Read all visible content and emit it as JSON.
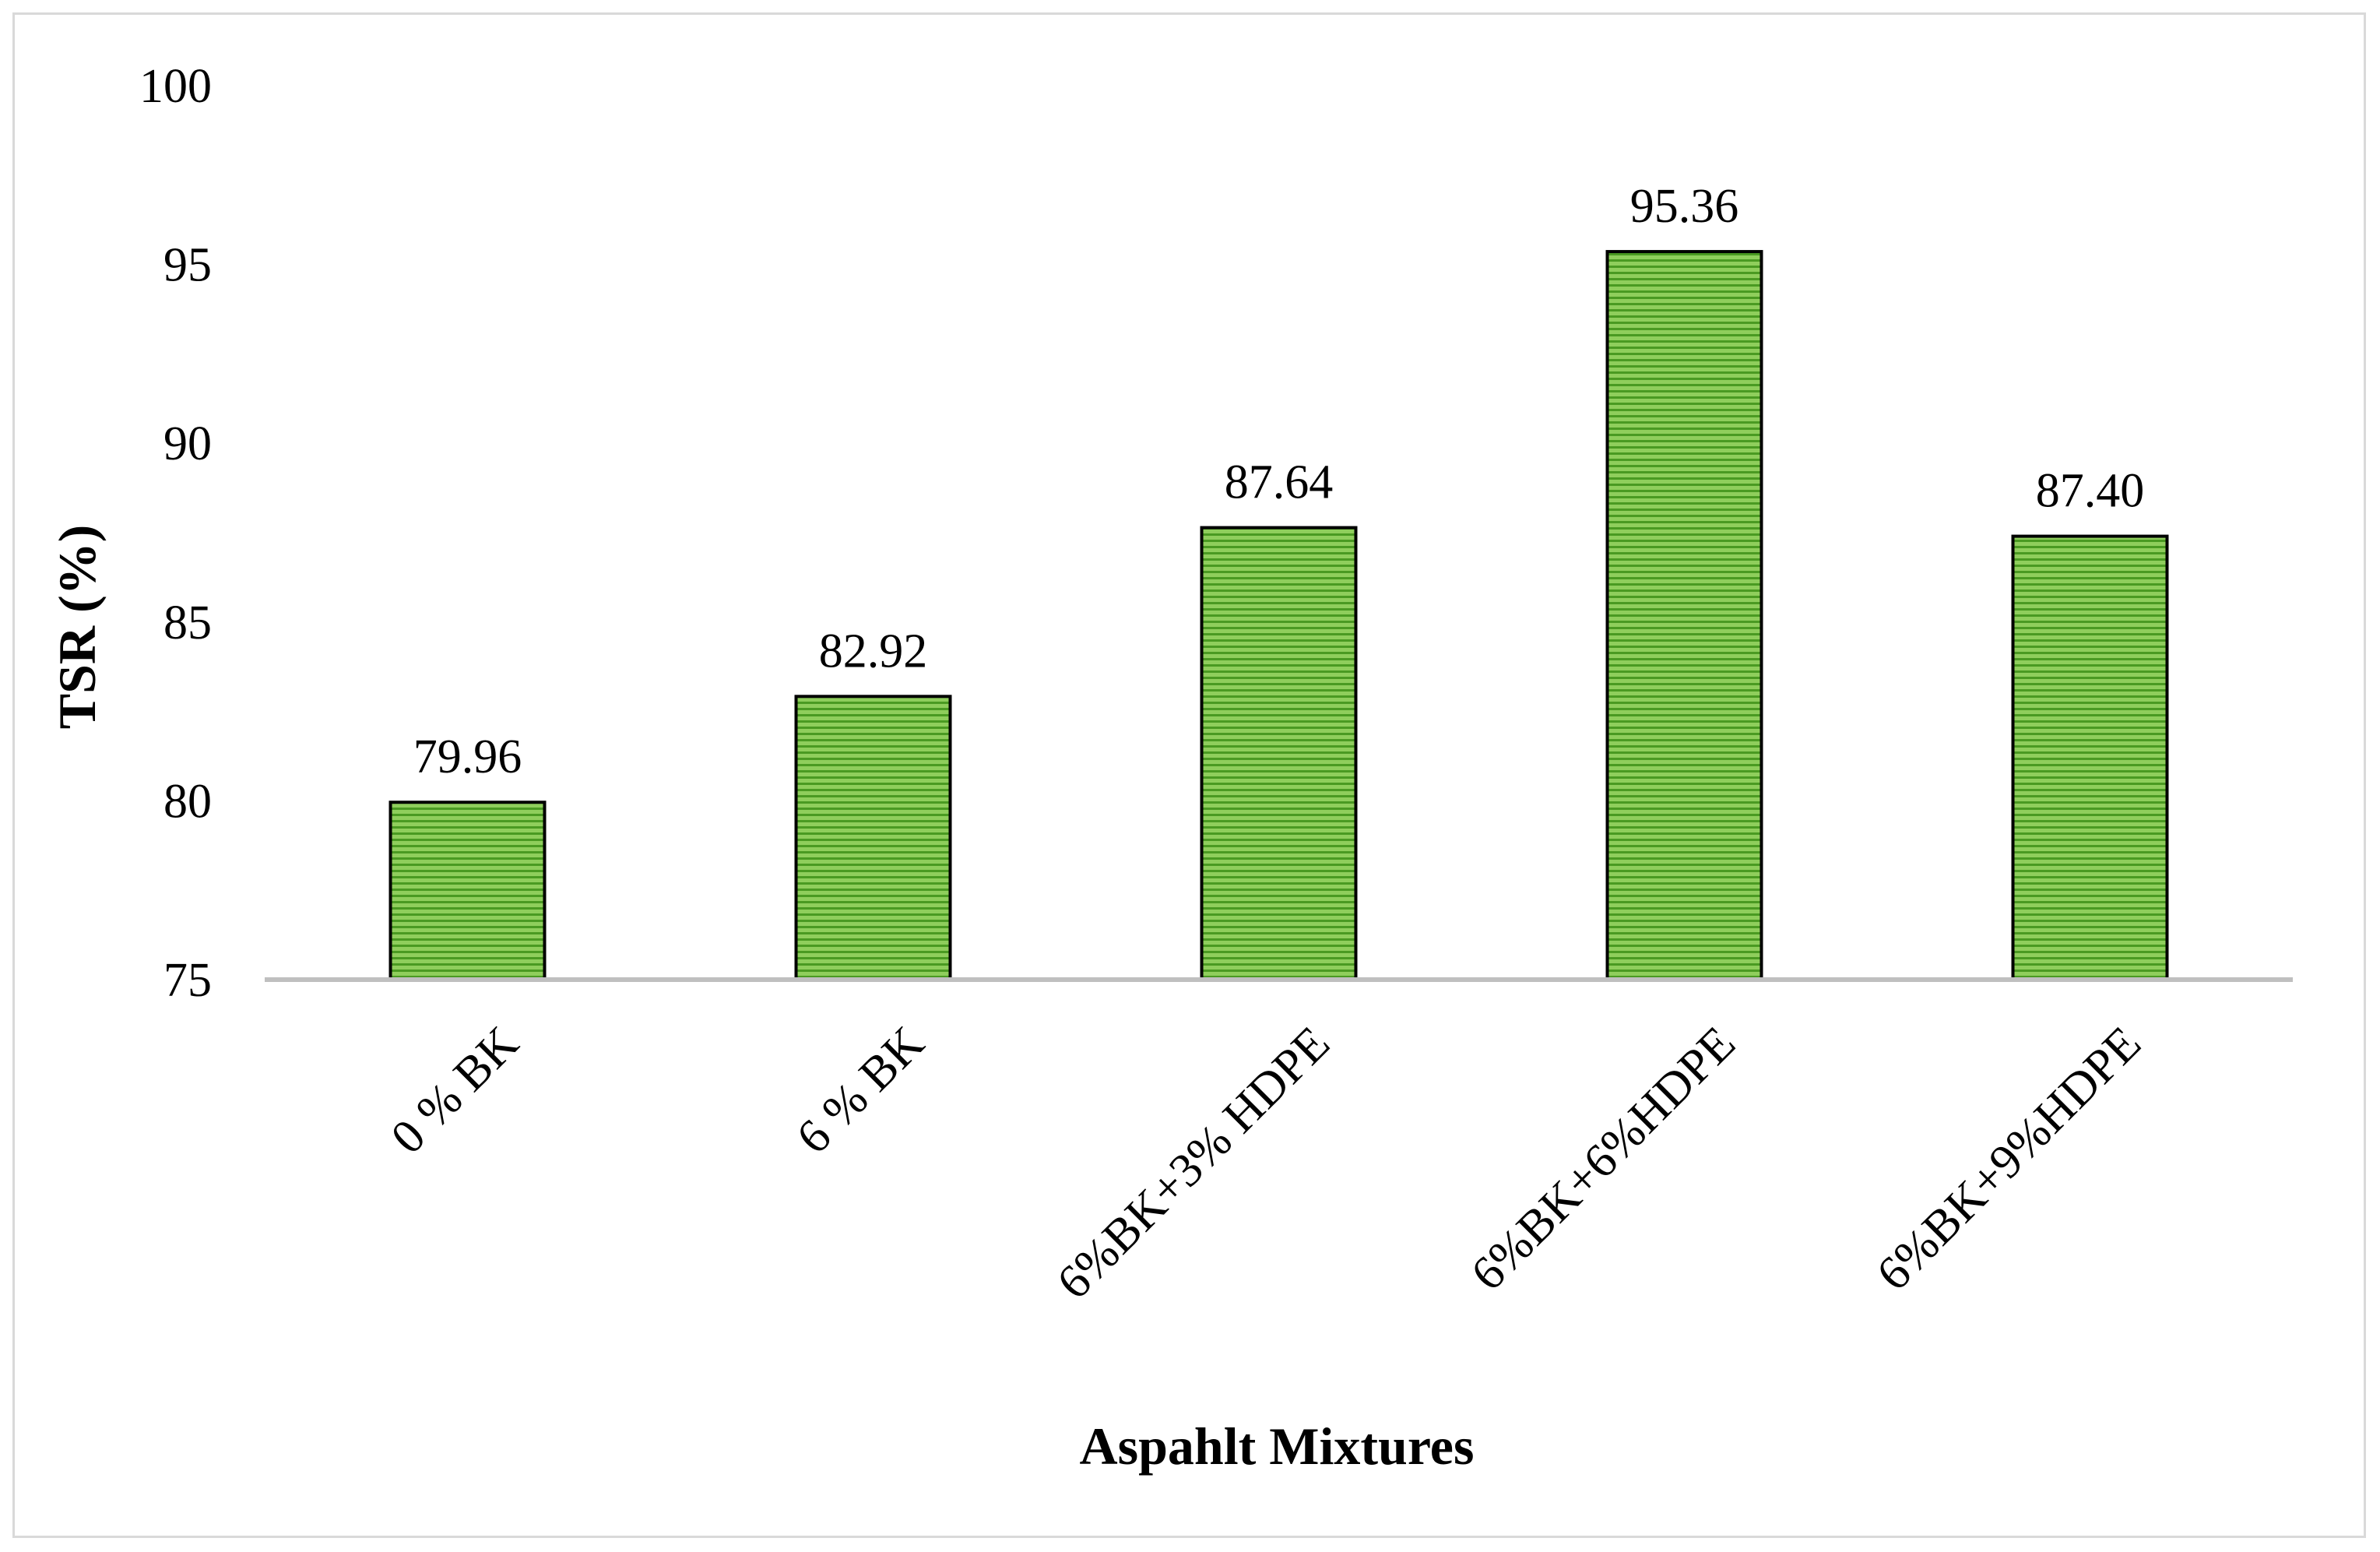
{
  "chart_data": {
    "type": "bar",
    "title": "",
    "xlabel": "Aspahlt Mixtures",
    "ylabel": "TSR (%)",
    "categories": [
      "0 % BK",
      "6 % BK",
      "6%BK+3% HDPE",
      "6%BK+6%HDPE",
      "6%BK+9%HDPE"
    ],
    "values": [
      79.96,
      82.92,
      87.64,
      95.36,
      87.4
    ],
    "value_labels": [
      "79.96",
      "82.92",
      "87.64",
      "95.36",
      "87.40"
    ],
    "ylim": [
      75,
      100
    ],
    "yticks": [
      75,
      80,
      85,
      90,
      95,
      100
    ],
    "grid": false,
    "legend": "none",
    "colors": {
      "bar_fill": "#8fce5c",
      "bar_stripe": "#4a9a22",
      "bar_edge": "#000000",
      "axis_line": "#bfbfbf",
      "frame": "#d9d9d9"
    }
  }
}
